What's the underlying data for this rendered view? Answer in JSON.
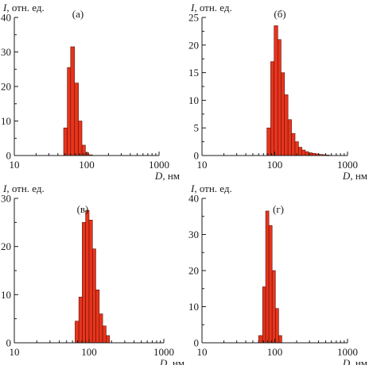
{
  "colors": {
    "bar": "#e8341c",
    "bar_edge": "#5a1208",
    "axis": "#1a1a1a"
  },
  "chart_data": [
    {
      "id": "a",
      "type": "bar",
      "panel_label": "(а)",
      "ylabel_var": "I",
      "ylabel_unit": ", отн. ед.",
      "xlabel_var": "D",
      "xlabel_unit": ", нм",
      "x_scale": "log",
      "xlim": [
        10,
        1000
      ],
      "ylim": [
        0,
        40
      ],
      "xticks": [
        10,
        100,
        1000
      ],
      "yticks": [
        0,
        10,
        20,
        30,
        40
      ],
      "grid": false,
      "bins": [
        {
          "from": 48,
          "to": 54,
          "value": 8
        },
        {
          "from": 54,
          "to": 60,
          "value": 25.5
        },
        {
          "from": 60,
          "to": 68,
          "value": 31.5
        },
        {
          "from": 68,
          "to": 77,
          "value": 21
        },
        {
          "from": 77,
          "to": 86,
          "value": 10
        },
        {
          "from": 86,
          "to": 96,
          "value": 3
        },
        {
          "from": 96,
          "to": 107,
          "value": 0.8
        },
        {
          "from": 107,
          "to": 120,
          "value": 0.2
        }
      ]
    },
    {
      "id": "b",
      "type": "bar",
      "panel_label": "(б)",
      "ylabel_var": "I",
      "ylabel_unit": ", отн. ед.",
      "xlabel_var": "D",
      "xlabel_unit": ", нм",
      "x_scale": "log",
      "xlim": [
        10,
        1000
      ],
      "ylim": [
        0,
        25
      ],
      "xticks": [
        10,
        100,
        1000
      ],
      "yticks": [
        0,
        5,
        10,
        15,
        20,
        25
      ],
      "grid": false,
      "bins": [
        {
          "from": 78,
          "to": 88,
          "value": 5
        },
        {
          "from": 88,
          "to": 98,
          "value": 17
        },
        {
          "from": 98,
          "to": 110,
          "value": 23.5
        },
        {
          "from": 110,
          "to": 122,
          "value": 21
        },
        {
          "from": 122,
          "to": 136,
          "value": 15
        },
        {
          "from": 136,
          "to": 152,
          "value": 11
        },
        {
          "from": 152,
          "to": 170,
          "value": 6.5
        },
        {
          "from": 170,
          "to": 190,
          "value": 4
        },
        {
          "from": 190,
          "to": 212,
          "value": 2.5
        },
        {
          "from": 212,
          "to": 236,
          "value": 1.5
        },
        {
          "from": 236,
          "to": 263,
          "value": 1
        },
        {
          "from": 263,
          "to": 293,
          "value": 0.7
        },
        {
          "from": 293,
          "to": 327,
          "value": 0.5
        },
        {
          "from": 327,
          "to": 365,
          "value": 0.4
        },
        {
          "from": 365,
          "to": 406,
          "value": 0.3
        },
        {
          "from": 406,
          "to": 452,
          "value": 0.2
        },
        {
          "from": 452,
          "to": 504,
          "value": 0.15
        },
        {
          "from": 504,
          "to": 562,
          "value": 0.1
        }
      ]
    },
    {
      "id": "c",
      "type": "bar",
      "panel_label": "(в)",
      "ylabel_var": "I",
      "ylabel_unit": ", отн. ед.",
      "xlabel_var": "D",
      "xlabel_unit": ", нм",
      "x_scale": "log",
      "xlim": [
        10,
        1000
      ],
      "ylim": [
        0,
        30
      ],
      "xticks": [
        10,
        100,
        1000
      ],
      "yticks": [
        0,
        10,
        20,
        30
      ],
      "grid": false,
      "bins": [
        {
          "from": 65,
          "to": 73,
          "value": 4.5
        },
        {
          "from": 73,
          "to": 81,
          "value": 9.5
        },
        {
          "from": 81,
          "to": 90,
          "value": 25
        },
        {
          "from": 90,
          "to": 100,
          "value": 27.5
        },
        {
          "from": 100,
          "to": 111,
          "value": 25.5
        },
        {
          "from": 111,
          "to": 123,
          "value": 19.5
        },
        {
          "from": 123,
          "to": 137,
          "value": 11
        },
        {
          "from": 137,
          "to": 152,
          "value": 6
        },
        {
          "from": 152,
          "to": 169,
          "value": 3.5
        },
        {
          "from": 169,
          "to": 188,
          "value": 1.5
        }
      ]
    },
    {
      "id": "d",
      "type": "bar",
      "panel_label": "(г)",
      "ylabel_var": "I",
      "ylabel_unit": ", отн. ед.",
      "xlabel_var": "D",
      "xlabel_unit": ", нм",
      "x_scale": "log",
      "xlim": [
        10,
        1000
      ],
      "ylim": [
        0,
        40
      ],
      "xticks": [
        10,
        100,
        1000
      ],
      "yticks": [
        0,
        10,
        20,
        30,
        40
      ],
      "grid": false,
      "bins": [
        {
          "from": 60,
          "to": 68,
          "value": 2
        },
        {
          "from": 68,
          "to": 75,
          "value": 15.5
        },
        {
          "from": 75,
          "to": 83,
          "value": 36.5
        },
        {
          "from": 83,
          "to": 92,
          "value": 32.5
        },
        {
          "from": 92,
          "to": 102,
          "value": 20
        },
        {
          "from": 102,
          "to": 113,
          "value": 9.5
        },
        {
          "from": 113,
          "to": 125,
          "value": 2
        }
      ]
    }
  ]
}
